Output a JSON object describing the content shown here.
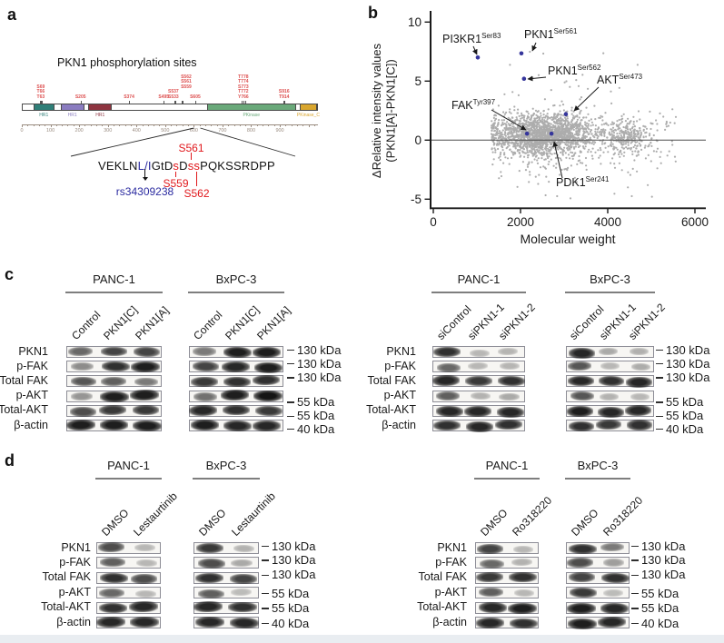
{
  "colors": {
    "tiny_site_red": "#dd5050",
    "inset_red": "#e0181c",
    "variant_blue": "#2b2ba0",
    "highlight_point": "#35359b",
    "cloud_point": "#a5a5a5",
    "domain_teal": "#2f7f78",
    "domain_purple": "#8a7cc0",
    "domain_maroon": "#8e3440",
    "domain_green": "#6aa97a",
    "domain_orange": "#d9a62e",
    "band": "#171717"
  },
  "panels": {
    "a": {
      "label": "a",
      "title": "PKN1 phosphorylation sites",
      "protein": {
        "domains": [
          {
            "name": "HR1",
            "start": 40,
            "end": 114,
            "color_key": "domain_teal"
          },
          {
            "name": "HR1",
            "start": 135,
            "end": 218,
            "color_key": "domain_purple"
          },
          {
            "name": "HR1",
            "start": 232,
            "end": 315,
            "color_key": "domain_maroon"
          },
          {
            "name": "PKinase",
            "start": 645,
            "end": 957,
            "color_key": "domain_green"
          },
          {
            "name": "PKinase_C",
            "start": 969,
            "end": 1030,
            "color_key": "domain_orange"
          }
        ],
        "site_clusters": [
          {
            "ticks": [
              63,
              66,
              69
            ],
            "lines": [
              "S69",
              "T66",
              "T63"
            ],
            "lift": 0,
            "dx": 0
          },
          {
            "ticks": [
              205
            ],
            "lines": [
              "S205"
            ],
            "lift": 0,
            "dx": 0
          },
          {
            "ticks": [
              374
            ],
            "lines": [
              "S374"
            ],
            "lift": 0,
            "dx": 0
          },
          {
            "ticks": [
              495
            ],
            "lines": [
              "S495"
            ],
            "lift": 0,
            "dx": 0
          },
          {
            "ticks": [
              533,
              537
            ],
            "lines": [
              "S537",
              "S533"
            ],
            "lift": 0,
            "dx": -2
          },
          {
            "ticks": [
              559,
              561,
              562
            ],
            "lines": [
              "S562",
              "S561",
              "S559"
            ],
            "lift": 11,
            "dx": 4
          },
          {
            "ticks": [
              605
            ],
            "lines": [
              "S605"
            ],
            "lift": 0,
            "dx": 0
          },
          {
            "ticks": [
              766,
              772,
              773,
              774,
              778
            ],
            "lines": [
              "T778",
              "T774",
              "S773",
              "T772",
              "Y766"
            ],
            "lift": 0,
            "dx": 0
          },
          {
            "ticks": [
              914,
              916
            ],
            "lines": [
              "S916",
              "T914"
            ],
            "lift": 0,
            "dx": 0
          }
        ],
        "ruler_ticks": [
          0,
          100,
          200,
          300,
          400,
          500,
          600,
          700,
          800,
          900
        ]
      },
      "inset": {
        "sequence_segments": [
          {
            "text": "VEKLN",
            "color": "black"
          },
          {
            "text": "L/I",
            "color": "blue",
            "id": "variant"
          },
          {
            "text": "GtD",
            "color": "black"
          },
          {
            "text": "s",
            "color": "red",
            "id": "s559"
          },
          {
            "text": "D",
            "color": "black"
          },
          {
            "text": "ss",
            "color": "red",
            "id": "s561s562"
          },
          {
            "text": "PQKSSRDPP",
            "color": "black"
          }
        ],
        "site_559": "S559",
        "site_561": "S561",
        "site_562": "S562",
        "variant": "rs34309238"
      }
    },
    "b": {
      "label": "b",
      "chart_data": {
        "type": "scatter",
        "xlabel": "Molecular weight",
        "ylabel_lines": [
          "ΔRelative intensity values",
          "(PKN1[A]-PKN1[C])"
        ],
        "xticks": [
          0,
          2000,
          4000,
          6000
        ],
        "yticks": [
          10,
          5,
          0,
          -5
        ],
        "xlim": [
          0,
          6300
        ],
        "ylim": [
          -5.8,
          10.8
        ],
        "zero_line": 0,
        "grid": false,
        "highlighted_points": [
          {
            "label": "PI3KR1",
            "site": "Ser83",
            "x": 1020,
            "y": 7.0
          },
          {
            "label": "PKN1",
            "site": "Ser561",
            "x": 2020,
            "y": 7.35
          },
          {
            "label": "PKN1",
            "site": "Ser562",
            "x": 2080,
            "y": 5.2
          },
          {
            "label": "AKT",
            "site": "Ser473",
            "x": 3040,
            "y": 2.2
          },
          {
            "label": "FAK",
            "site": "Tyr397",
            "x": 2150,
            "y": 0.55
          },
          {
            "label": "PDK1",
            "site": "Ser241",
            "x": 2710,
            "y": 0.55
          }
        ],
        "background_cloud": {
          "approx_n": 2300,
          "x_range": [
            1250,
            5650
          ],
          "y_core_mean": 0.45,
          "y_core_sd": 0.85,
          "seed": 11
        }
      }
    },
    "c": {
      "label": "c",
      "row_labels": [
        "PKN1",
        "p-FAK",
        "Total FAK",
        "p-AKT",
        "Total-AKT",
        "β-actin"
      ],
      "marker_labels": [
        "130 kDa",
        "130 kDa",
        "130 kDa",
        "55 kDa",
        "55 kDa",
        "40 kDa"
      ],
      "groups": [
        {
          "blocks": [
            {
              "cell_line": "PANC-1",
              "lanes": [
                "Control",
                "PKN1[C]",
                "PKN1[A]"
              ],
              "bands": [
                [
                  0.55,
                  0.75,
                  0.75
                ],
                [
                  0.35,
                  0.85,
                  0.95
                ],
                [
                  0.65,
                  0.6,
                  0.45
                ],
                [
                  0.3,
                  0.95,
                  0.95
                ],
                [
                  0.7,
                  0.8,
                  0.8
                ],
                [
                  0.95,
                  0.95,
                  0.95
                ]
              ]
            },
            {
              "cell_line": "BxPC-3",
              "lanes": [
                "Control",
                "PKN1[C]",
                "PKN1[A]"
              ],
              "bands": [
                [
                  0.45,
                  0.95,
                  0.95
                ],
                [
                  0.75,
                  0.9,
                  0.95
                ],
                [
                  0.8,
                  0.85,
                  0.85
                ],
                [
                  0.5,
                  0.95,
                  1.0
                ],
                [
                  0.9,
                  0.85,
                  0.8
                ],
                [
                  0.95,
                  0.9,
                  0.9
                ]
              ]
            }
          ]
        },
        {
          "blocks": [
            {
              "cell_line": "PANC-1",
              "lanes": [
                "siControl",
                "siPKN1-1",
                "siPKN1-2"
              ],
              "bands": [
                [
                  0.85,
                  0.12,
                  0.14
                ],
                [
                  0.55,
                  0.12,
                  0.14
                ],
                [
                  0.9,
                  0.8,
                  0.85
                ],
                [
                  0.6,
                  0.15,
                  0.2
                ],
                [
                  0.9,
                  0.9,
                  0.9
                ],
                [
                  0.85,
                  0.9,
                  0.85
                ]
              ]
            },
            {
              "cell_line": "BxPC-3",
              "lanes": [
                "siControl",
                "siPKN1-1",
                "siPKN1-2"
              ],
              "bands": [
                [
                  0.9,
                  0.2,
                  0.16
                ],
                [
                  0.65,
                  0.12,
                  0.18
                ],
                [
                  0.9,
                  0.85,
                  0.9
                ],
                [
                  0.65,
                  0.15,
                  0.12
                ],
                [
                  0.95,
                  0.9,
                  0.9
                ],
                [
                  0.85,
                  0.8,
                  0.85
                ]
              ]
            }
          ]
        }
      ]
    },
    "d": {
      "label": "d",
      "row_labels": [
        "PKN1",
        "p-FAK",
        "Total FAK",
        "p-AKT",
        "Total-AKT",
        "β-actin"
      ],
      "marker_labels": [
        "130 kDa",
        "130 kDa",
        "130 kDa",
        "55 kDa",
        "55 kDa",
        "40 kDa"
      ],
      "groups": [
        {
          "blocks": [
            {
              "cell_line": "PANC-1",
              "lanes": [
                "DMSO",
                "Lestaurtinib"
              ],
              "bands": [
                [
                  0.7,
                  0.12
                ],
                [
                  0.6,
                  0.12
                ],
                [
                  0.85,
                  0.7
                ],
                [
                  0.55,
                  0.12
                ],
                [
                  0.85,
                  0.9
                ],
                [
                  0.9,
                  0.9
                ]
              ]
            },
            {
              "cell_line": "BxPC-3",
              "lanes": [
                "DMSO",
                "Lestaurtinib"
              ],
              "bands": [
                [
                  0.8,
                  0.15
                ],
                [
                  0.7,
                  0.2
                ],
                [
                  0.85,
                  0.75
                ],
                [
                  0.6,
                  0.1
                ],
                [
                  0.9,
                  0.85
                ],
                [
                  0.9,
                  0.9
                ]
              ]
            }
          ]
        },
        {
          "blocks": [
            {
              "cell_line": "PANC-1",
              "lanes": [
                "DMSO",
                "Ro318220"
              ],
              "bands": [
                [
                  0.75,
                  0.12
                ],
                [
                  0.55,
                  0.15
                ],
                [
                  0.8,
                  0.85
                ],
                [
                  0.6,
                  0.12
                ],
                [
                  0.9,
                  0.95
                ],
                [
                  0.9,
                  0.85
                ]
              ]
            },
            {
              "cell_line": "BxPC-3",
              "lanes": [
                "DMSO",
                "Ro318220"
              ],
              "bands": [
                [
                  0.85,
                  0.45
                ],
                [
                  0.7,
                  0.25
                ],
                [
                  0.75,
                  0.85
                ],
                [
                  0.8,
                  0.1
                ],
                [
                  0.95,
                  0.9
                ],
                [
                  0.95,
                  0.9
                ]
              ]
            }
          ]
        }
      ]
    }
  }
}
